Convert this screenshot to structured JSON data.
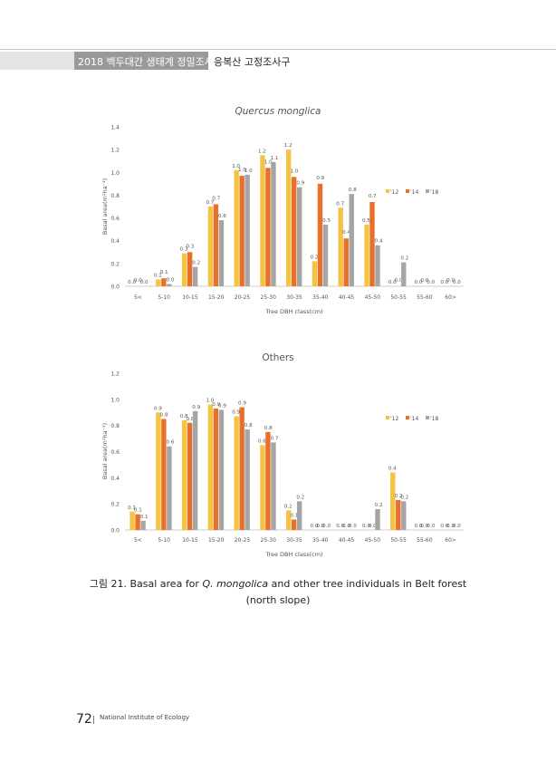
{
  "header": {
    "series_title": "2018 백두대간 생태계 정밀조사",
    "section_title": "응복산 고정조사구"
  },
  "chart_data": [
    {
      "type": "bar",
      "title": "Quercus monglica",
      "xlabel": "Tree DBH class(cm)",
      "ylabel": "Basal area(m²ha⁻¹)",
      "ylim": [
        0,
        1.4
      ],
      "yticks": [
        "0.0",
        "0.2",
        "0.4",
        "0.6",
        "0.8",
        "1.0",
        "1.2",
        "1.4"
      ],
      "categories": [
        "5<",
        "5-10",
        "10-15",
        "15-20",
        "20-25",
        "25-30",
        "30-35",
        "35-40",
        "40-45",
        "45-50",
        "50-55",
        "55-60",
        "60>"
      ],
      "legend": [
        "'12",
        "'14",
        "'18"
      ],
      "colors": [
        "#f5c342",
        "#e8702a",
        "#a5a5a5"
      ],
      "series": [
        {
          "name": "'12",
          "values": [
            0.0,
            0.06,
            0.29,
            0.7,
            1.02,
            1.15,
            1.2,
            0.22,
            0.69,
            0.54,
            0.0,
            0.0,
            0.0
          ]
        },
        {
          "name": "'14",
          "values": [
            0.0,
            0.07,
            0.3,
            0.72,
            0.97,
            1.04,
            0.96,
            0.9,
            0.42,
            0.74,
            0.0,
            0.0,
            0.0
          ]
        },
        {
          "name": "'18",
          "values": [
            0.0,
            0.02,
            0.17,
            0.58,
            0.98,
            1.09,
            0.87,
            0.54,
            0.81,
            0.36,
            0.21,
            0.0,
            0.0
          ]
        }
      ],
      "labels": [
        [
          "0.0",
          "0.1",
          "0.3",
          "0.7",
          "1.0",
          "1.2",
          "1.2",
          "0.2",
          "0.7",
          "0.5",
          "0.0",
          "0.0",
          "0.0"
        ],
        [
          "0.0",
          "0.1",
          "0.3",
          "0.7",
          "1.0",
          "1.0",
          "1.0",
          "0.9",
          "0.4",
          "0.7",
          "0.0",
          "0.0",
          "0.0"
        ],
        [
          "0.0",
          "0.0",
          "0.2",
          "0.6",
          "1.0",
          "1.1",
          "0.9",
          "0.5",
          "0.8",
          "0.4",
          "0.2",
          "0.0",
          "0.0"
        ]
      ]
    },
    {
      "type": "bar",
      "title": "Others",
      "xlabel": "Tree DBH class(cm)",
      "ylabel": "Basal area(m²ha⁻¹)",
      "ylim": [
        0,
        1.2
      ],
      "yticks": [
        "0.0",
        "0.2",
        "0.4",
        "0.6",
        "0.8",
        "1.0",
        "1.2"
      ],
      "categories": [
        "5<",
        "5-10",
        "10-15",
        "15-20",
        "20-25",
        "25-30",
        "30-35",
        "35-40",
        "40-45",
        "45-50",
        "50-55",
        "55-60",
        "60>"
      ],
      "legend": [
        "'12",
        "'14",
        "'18"
      ],
      "colors": [
        "#f5c342",
        "#e8702a",
        "#a5a5a5"
      ],
      "series": [
        {
          "name": "'12",
          "values": [
            0.14,
            0.9,
            0.84,
            0.96,
            0.87,
            0.65,
            0.15,
            0.0,
            0.0,
            0.0,
            0.44,
            0.0,
            0.0
          ]
        },
        {
          "name": "'14",
          "values": [
            0.12,
            0.85,
            0.82,
            0.93,
            0.94,
            0.75,
            0.08,
            0.0,
            0.0,
            0.0,
            0.23,
            0.0,
            0.0
          ]
        },
        {
          "name": "'18",
          "values": [
            0.07,
            0.64,
            0.91,
            0.92,
            0.77,
            0.67,
            0.22,
            0.0,
            0.0,
            0.16,
            0.22,
            0.0,
            0.0
          ]
        }
      ],
      "labels": [
        [
          "0.1",
          "0.9",
          "0.8",
          "1.0",
          "0.9",
          "0.6",
          "0.2",
          "0.0",
          "0.0",
          "0.0",
          "0.4",
          "0.0",
          "0.0"
        ],
        [
          "0.1",
          "0.8",
          "0.8",
          "0.9",
          "0.9",
          "0.8",
          "0.1",
          "0.0",
          "0.0",
          "0.0",
          "0.2",
          "0.0",
          "0.0"
        ],
        [
          "0.1",
          "0.6",
          "0.9",
          "0.9",
          "0.8",
          "0.7",
          "0.2",
          "0.0",
          "0.0",
          "0.2",
          "0.2",
          "0.0",
          "0.0"
        ]
      ]
    }
  ],
  "caption": {
    "prefix": "그림 21. Basal area for ",
    "species": "Q. mongolica",
    "suffix": " and other tree individuals in Belt forest",
    "line2": "(north slope)"
  },
  "footer": {
    "page_number": "72",
    "institute": "National Institute of Ecology"
  }
}
